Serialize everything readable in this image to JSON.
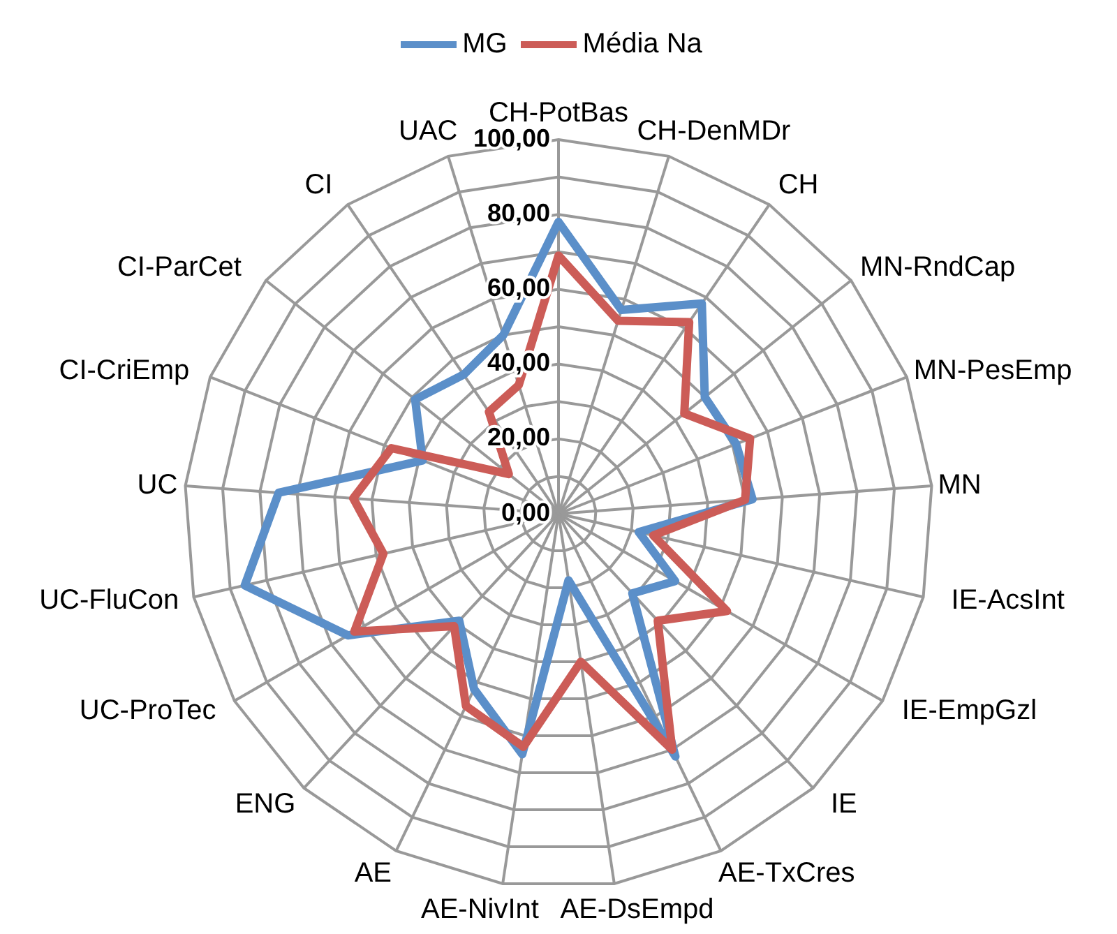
{
  "chart_data": {
    "type": "radar",
    "categories": [
      "CH-PotBas",
      "CH-DenMDr",
      "CH",
      "MN-RndCap",
      "MN-PesEmp",
      "MN",
      "IE-AcsInt",
      "IE-EmpGzl",
      "IE",
      "AE-TxCres",
      "AE-DsEmpd",
      "AE-NivInt",
      "AE",
      "ENG",
      "UC-ProTec",
      "UC-FluCon",
      "UC",
      "CI-CriEmp",
      "CI-ParCet",
      "CI",
      "UAC"
    ],
    "series": [
      {
        "name": "MG",
        "color": "#5b8fc9",
        "values": [
          78,
          57,
          68,
          50,
          51,
          52,
          22,
          36,
          29,
          72,
          18,
          65,
          52,
          39,
          65,
          86,
          75,
          39,
          49,
          45,
          50
        ]
      },
      {
        "name": "Média Na",
        "color": "#cc5c57",
        "values": [
          69,
          54,
          62,
          43,
          55,
          50,
          26,
          52,
          39,
          70,
          40,
          63,
          57,
          41,
          63,
          48,
          55,
          48,
          17,
          33,
          36
        ]
      }
    ],
    "ylim": [
      0,
      100
    ],
    "yticks": [
      {
        "value": 0,
        "label": "0,00"
      },
      {
        "value": 20,
        "label": "20,00"
      },
      {
        "value": 40,
        "label": "40,00"
      },
      {
        "value": 60,
        "label": "60,00"
      },
      {
        "value": 80,
        "label": "80,00"
      },
      {
        "value": 100,
        "label": "100,00"
      }
    ],
    "grid": true,
    "legend": "top"
  }
}
